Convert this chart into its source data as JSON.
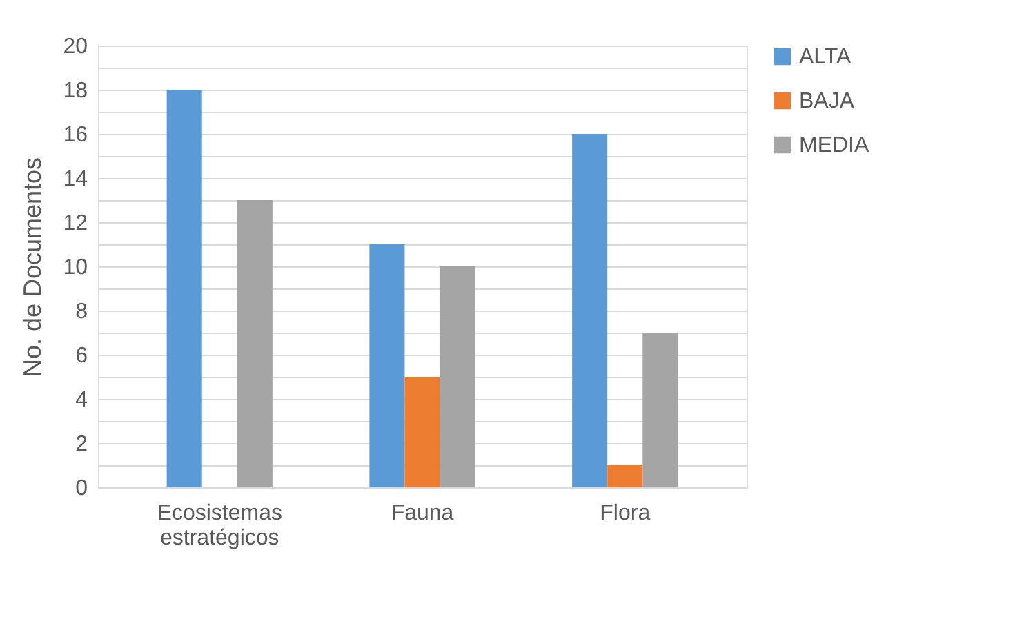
{
  "chart_data": {
    "type": "bar",
    "ylabel": "No. de Documentos",
    "categories": [
      "Ecosistemas estratégicos",
      "Fauna",
      "Flora"
    ],
    "series": [
      {
        "name": "ALTA",
        "color": "#5b9bd5",
        "values": [
          18,
          11,
          16
        ]
      },
      {
        "name": "BAJA",
        "color": "#ed7d31",
        "values": [
          0,
          5,
          1
        ]
      },
      {
        "name": "MEDIA",
        "color": "#a5a5a5",
        "values": [
          13,
          10,
          7
        ]
      }
    ],
    "ylim": [
      0,
      20
    ],
    "yticks": [
      0,
      {
        "value": 1,
        "label": null
      },
      2,
      {
        "value": 3,
        "label": null
      },
      4,
      {
        "value": 5,
        "label": null
      },
      6,
      {
        "value": 7,
        "label": null
      },
      8,
      {
        "value": 9,
        "label": null
      },
      10,
      {
        "value": 11,
        "label": null
      },
      12,
      {
        "value": 13,
        "label": null
      },
      14,
      {
        "value": 15,
        "label": null
      },
      16,
      {
        "value": 17,
        "label": null
      },
      18,
      {
        "value": 19,
        "label": null
      },
      20
    ],
    "grid": "y",
    "legend": "right"
  }
}
